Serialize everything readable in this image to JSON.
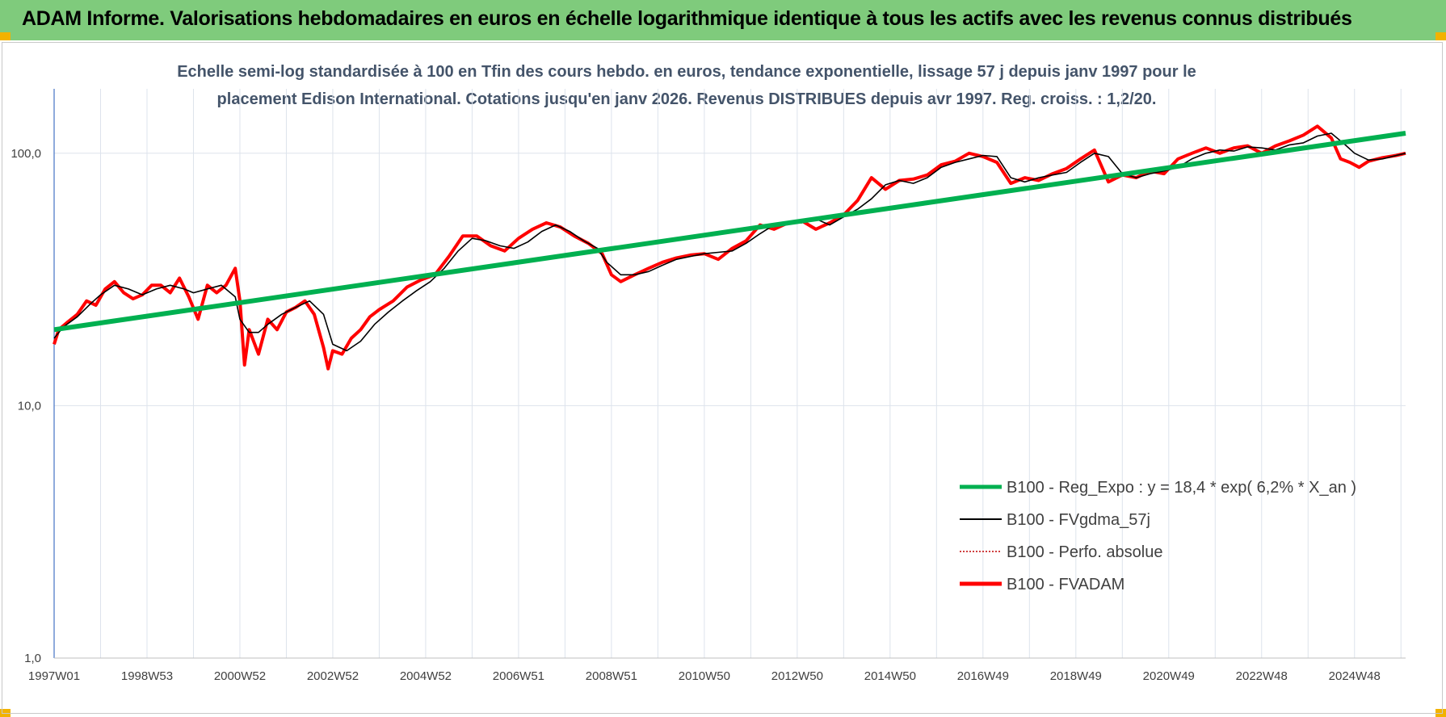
{
  "header": {
    "title": "ADAM Informe. Valorisations hebdomadaires en euros en échelle logarithmique identique à tous les actifs avec les revenus connus distribués"
  },
  "chart_data": {
    "type": "line",
    "subtitle_line1": "Echelle semi-log standardisée à 100 en Tfin des cours hebdo. en euros, tendance exponentielle, lissage 57 j depuis janv 1997 pour le",
    "subtitle_line2": "placement Edison International. Cotations jusqu'en janv 2026. Revenus DISTRIBUES depuis avr 1997.  Reg. croiss. : 1,2/20.",
    "y_scale": "log",
    "ylim": [
      1,
      180
    ],
    "y_ticks": [
      "1,0",
      "10,0",
      "100,0"
    ],
    "y_tick_values": [
      1,
      10,
      100
    ],
    "xlim": [
      1997.0,
      2026.1
    ],
    "x_tick_labels": [
      "1997W01",
      "1998W53",
      "2000W52",
      "2002W52",
      "2004W52",
      "2006W51",
      "2008W51",
      "2010W50",
      "2012W50",
      "2014W50",
      "2016W49",
      "2018W49",
      "2020W49",
      "2022W48",
      "2024W48"
    ],
    "x_tick_values": [
      1997.0,
      1999.0,
      2001.0,
      2003.0,
      2005.0,
      2007.0,
      2009.0,
      2011.0,
      2013.0,
      2015.0,
      2017.0,
      2019.0,
      2021.0,
      2023.0,
      2025.0
    ],
    "grid": "vertical",
    "legend_position": "bottom-right",
    "series": [
      {
        "name": "B100 - Reg_Expo : y = 18,4 * exp( 6,2% *  X_an )",
        "color": "#00b050",
        "style": "thick-solid",
        "x": [
          1997.0,
          2026.1
        ],
        "y": [
          20.0,
          120.0
        ]
      },
      {
        "name": "B100 - FVgdma_57j",
        "color": "#000000",
        "style": "thin-solid",
        "x": [
          1997.0,
          1997.2,
          1997.5,
          1997.8,
          1998.0,
          1998.3,
          1998.6,
          1998.9,
          1999.2,
          1999.5,
          1999.8,
          2000.0,
          2000.3,
          2000.6,
          2000.9,
          2001.0,
          2001.2,
          2001.4,
          2001.6,
          2001.9,
          2002.2,
          2002.5,
          2002.8,
          2003.0,
          2003.3,
          2003.6,
          2003.9,
          2004.2,
          2004.5,
          2004.8,
          2005.1,
          2005.4,
          2005.7,
          2006.0,
          2006.3,
          2006.6,
          2006.9,
          2007.2,
          2007.5,
          2007.8,
          2008.1,
          2008.4,
          2008.7,
          2008.9,
          2009.2,
          2009.5,
          2009.8,
          2010.1,
          2010.4,
          2010.7,
          2011.0,
          2011.3,
          2011.6,
          2011.9,
          2012.2,
          2012.5,
          2012.8,
          2013.1,
          2013.4,
          2013.7,
          2014.0,
          2014.3,
          2014.6,
          2014.9,
          2015.2,
          2015.5,
          2015.8,
          2016.1,
          2016.4,
          2016.7,
          2017.0,
          2017.3,
          2017.6,
          2017.9,
          2018.2,
          2018.5,
          2018.8,
          2019.1,
          2019.4,
          2019.7,
          2020.0,
          2020.3,
          2020.6,
          2020.9,
          2021.2,
          2021.5,
          2021.8,
          2022.1,
          2022.4,
          2022.7,
          2023.0,
          2023.3,
          2023.6,
          2023.9,
          2024.2,
          2024.5,
          2024.8,
          2025.0,
          2025.3,
          2025.6,
          2025.9,
          2026.1
        ],
        "y": [
          18.5,
          20.5,
          22.5,
          25.5,
          27.5,
          30,
          29,
          27.5,
          29,
          30,
          29,
          28,
          29,
          30,
          27,
          22,
          19.5,
          19.5,
          21,
          23,
          24.5,
          26,
          23,
          17.5,
          16.5,
          18,
          21,
          23.5,
          26,
          28.5,
          31,
          35,
          41,
          46,
          45,
          43,
          42,
          44.5,
          49,
          52,
          49,
          45,
          42,
          37,
          33,
          33,
          34,
          36,
          38,
          39,
          40,
          40.5,
          41,
          44,
          48,
          52,
          53,
          53,
          55,
          52,
          56,
          60,
          66,
          75,
          78,
          76,
          80,
          88,
          92,
          95,
          98,
          97,
          80,
          77,
          80,
          82,
          84,
          92,
          100,
          97,
          83,
          80,
          83,
          85,
          88,
          95,
          100,
          103,
          102,
          106,
          105,
          103,
          108,
          110,
          117,
          120,
          108,
          100,
          94,
          95,
          98,
          100
        ]
      },
      {
        "name": "B100 - Perfo. absolue",
        "color": "#c00000",
        "style": "dotted"
      },
      {
        "name": "B100 - FVADAM",
        "color": "#ff0000",
        "style": "thick-solid",
        "x": [
          1997.0,
          1997.1,
          1997.3,
          1997.5,
          1997.7,
          1997.9,
          1998.1,
          1998.3,
          1998.5,
          1998.7,
          1998.9,
          1999.1,
          1999.3,
          1999.5,
          1999.7,
          1999.9,
          2000.1,
          2000.3,
          2000.5,
          2000.7,
          2000.9,
          2001.0,
          2001.1,
          2001.2,
          2001.4,
          2001.6,
          2001.8,
          2002.0,
          2002.2,
          2002.4,
          2002.6,
          2002.8,
          2002.9,
          2003.0,
          2003.2,
          2003.4,
          2003.6,
          2003.8,
          2004.0,
          2004.3,
          2004.6,
          2004.9,
          2005.2,
          2005.5,
          2005.8,
          2006.1,
          2006.4,
          2006.7,
          2007.0,
          2007.3,
          2007.6,
          2007.9,
          2008.2,
          2008.5,
          2008.8,
          2009.0,
          2009.2,
          2009.5,
          2009.8,
          2010.1,
          2010.4,
          2010.7,
          2011.0,
          2011.3,
          2011.6,
          2011.9,
          2012.2,
          2012.5,
          2012.8,
          2013.1,
          2013.4,
          2013.7,
          2014.0,
          2014.3,
          2014.6,
          2014.9,
          2015.2,
          2015.5,
          2015.8,
          2016.1,
          2016.4,
          2016.7,
          2017.0,
          2017.3,
          2017.6,
          2017.9,
          2018.2,
          2018.5,
          2018.8,
          2019.1,
          2019.4,
          2019.7,
          2020.0,
          2020.3,
          2020.6,
          2020.9,
          2021.2,
          2021.5,
          2021.8,
          2022.1,
          2022.4,
          2022.7,
          2023.0,
          2023.3,
          2023.6,
          2023.9,
          2024.2,
          2024.5,
          2024.7,
          2024.9,
          2025.1,
          2025.3,
          2025.6,
          2025.9,
          2026.1
        ],
        "y": [
          17.5,
          20,
          21.5,
          23,
          26,
          25,
          29,
          31,
          28,
          26.5,
          27.5,
          30,
          30,
          28,
          32,
          27,
          22,
          30,
          28,
          30,
          35,
          26,
          14.5,
          20,
          16,
          22,
          20,
          23.5,
          24.5,
          26,
          23,
          17,
          14,
          16.5,
          16,
          18.5,
          20,
          22.5,
          24,
          26,
          29.5,
          31.5,
          33,
          39,
          47,
          47,
          43,
          41,
          46,
          50,
          53,
          51,
          47,
          44,
          40,
          33,
          31,
          33,
          35,
          37,
          38.5,
          39.5,
          40,
          38,
          42,
          45,
          52,
          50,
          53,
          54,
          50,
          53,
          57,
          65,
          80,
          72,
          78,
          79,
          82,
          90,
          93,
          100,
          97,
          92,
          76,
          80,
          78,
          83,
          87,
          95,
          103,
          77,
          82,
          80,
          85,
          83,
          95,
          100,
          105,
          100,
          105,
          107,
          100,
          107,
          112,
          118,
          128,
          115,
          95,
          92,
          88,
          93,
          96,
          98,
          100
        ]
      }
    ]
  }
}
